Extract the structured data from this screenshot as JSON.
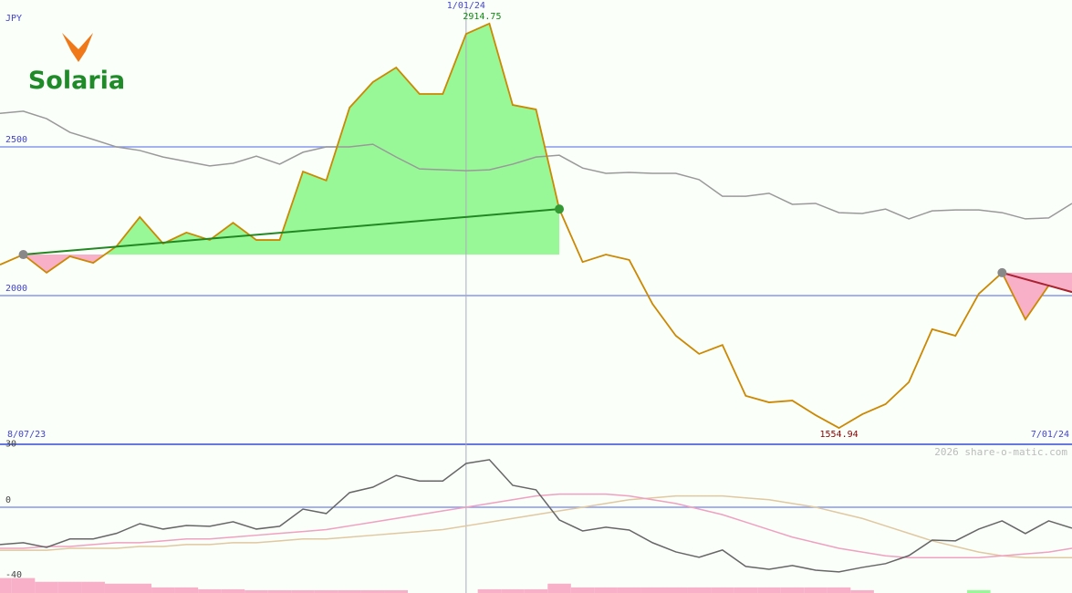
{
  "logo": {
    "text": "Solaria"
  },
  "watermark": "2026 share-o-matic.com",
  "chart_data": [
    {
      "type": "line",
      "y_label": "JPY",
      "categories": [
        "8/07/23",
        null,
        null,
        null,
        null,
        null,
        null,
        null,
        null,
        null,
        null,
        null,
        null,
        null,
        null,
        null,
        null,
        null,
        null,
        null,
        null,
        null,
        null,
        null,
        null,
        null,
        null,
        null,
        null,
        null,
        null,
        null,
        null,
        null,
        null,
        null,
        null,
        null,
        null,
        null,
        null,
        null,
        null,
        null,
        null,
        null,
        "7/01/24"
      ],
      "marker": {
        "index": 20,
        "label": "1/01/24"
      },
      "ylim": [
        1500,
        2994
      ],
      "yticks": [
        2000,
        2500
      ],
      "grid": true,
      "series": [
        {
          "color": "#cc8800",
          "values": [
            2104,
            2138,
            2077,
            2132,
            2110,
            2166,
            2264,
            2175,
            2212,
            2187,
            2245,
            2187,
            2187,
            2417,
            2387,
            2632,
            2718,
            2767,
            2678,
            2678,
            2880,
            2914.75,
            2641,
            2626,
            2291,
            2113,
            2138,
            2120,
            1972,
            1865,
            1804,
            1834,
            1663,
            1641,
            1647,
            1598,
            1554.94,
            1601,
            1635,
            1709,
            1887,
            1865,
            2006,
            2077,
            1920,
            2034,
            2012
          ],
          "max_index": 21,
          "max_color": "#118811",
          "min_index": 36,
          "min_color": "#880000"
        },
        {
          "color": "#999999",
          "values": [
            2613,
            2620,
            2595,
            2549,
            2525,
            2500,
            2488,
            2466,
            2451,
            2436,
            2445,
            2469,
            2442,
            2482,
            2500,
            2500,
            2509,
            2466,
            2426,
            2423,
            2420,
            2423,
            2442,
            2466,
            2472,
            2429,
            2411,
            2414,
            2411,
            2411,
            2390,
            2334,
            2334,
            2344,
            2307,
            2310,
            2279,
            2276,
            2291,
            2258,
            2285,
            2288,
            2288,
            2279,
            2258,
            2261,
            2310
          ]
        }
      ],
      "trends": [
        {
          "start": 1,
          "end": 24,
          "color": "#228822",
          "end_dot_color": "#339933"
        },
        {
          "start": 43,
          "end": 46,
          "color": "#aa2233"
        }
      ],
      "up_fill": "#98f898",
      "down_fill": "#f8b0c8"
    },
    {
      "type": "line",
      "ylim": [
        -45.9,
        31.7
      ],
      "yticks": [
        30,
        0,
        -40
      ],
      "zero_line": true,
      "series": [
        {
          "color": "#666666",
          "values": [
            -20,
            -19,
            -21.5,
            -17,
            -17,
            -14,
            -8.8,
            -11.7,
            -9.8,
            -10.2,
            -7.8,
            -11.7,
            -10.2,
            -1,
            -3.4,
            7.8,
            10.7,
            17,
            14,
            14,
            23.4,
            25.4,
            11.7,
            9.3,
            -6.8,
            -12.7,
            -10.7,
            -12.2,
            -19,
            -23.9,
            -26.8,
            -22.9,
            -31.7,
            -33.2,
            -31.2,
            -33.7,
            -34.6,
            -32.2,
            -30.2,
            -25.9,
            -17.6,
            -18,
            -11.7,
            -7.3,
            -14.1,
            -7.3,
            -11.2
          ]
        },
        {
          "color": "#f0a0c0",
          "values": [
            -22,
            -22,
            -21,
            -21,
            -20,
            -19,
            -19,
            -18,
            -17,
            -17,
            -16,
            -15,
            -14,
            -13,
            -12,
            -10,
            -8,
            -6,
            -4,
            -2,
            0,
            2,
            4,
            6,
            7,
            7,
            7,
            6,
            4,
            2,
            -1,
            -4,
            -8,
            -12,
            -16,
            -19,
            -22,
            -24,
            -26,
            -27,
            -27,
            -27,
            -27,
            -26,
            -25,
            -24,
            -22
          ]
        },
        {
          "color": "#e0c8a0",
          "values": [
            -23,
            -23,
            -23,
            -22,
            -22,
            -22,
            -21,
            -21,
            -20,
            -20,
            -19,
            -19,
            -18,
            -17,
            -17,
            -16,
            -15,
            -14,
            -13,
            -12,
            -10,
            -8,
            -6,
            -4,
            -2,
            0,
            2,
            4,
            5,
            6,
            6,
            6,
            5,
            4,
            2,
            0,
            -3,
            -6,
            -10,
            -14,
            -18,
            -21,
            -24,
            -26,
            -27,
            -27,
            -27
          ]
        }
      ],
      "bars": {
        "up_color": "#98f898",
        "down_color": "#f8b0c8",
        "values": [
          -8,
          -8,
          -6,
          -6,
          -6,
          -5,
          -5,
          -3,
          -3,
          -2,
          -2,
          -1.5,
          -1.5,
          -1.5,
          -1.5,
          -1.5,
          -1.5,
          -1.5,
          0,
          0,
          0,
          -2,
          -2,
          -2,
          -5,
          -3,
          -3,
          -3,
          -3,
          -3,
          -3,
          -3,
          -3,
          -3,
          -3,
          -3,
          -3,
          -1.5,
          0,
          0,
          0,
          0,
          1.5,
          0,
          0,
          0,
          0
        ]
      }
    }
  ]
}
